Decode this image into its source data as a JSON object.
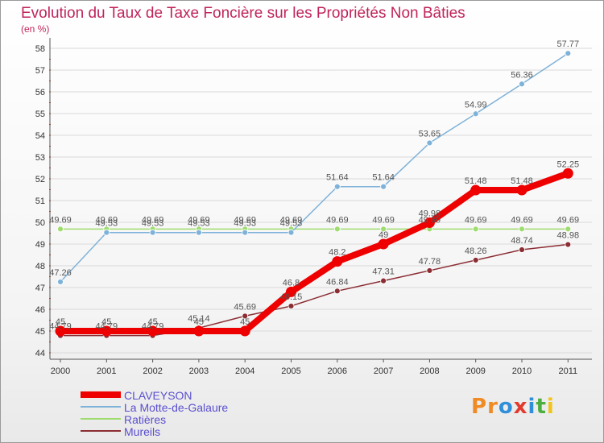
{
  "header": {
    "title": "Evolution du Taux de Taxe Foncière sur les Propriétés Non Bâties",
    "unit": "(en %)"
  },
  "brand": {
    "name": "Proxiti",
    "letters": [
      {
        "ch": "P",
        "color": "#f08a24"
      },
      {
        "ch": "r",
        "color": "#f08a24"
      },
      {
        "ch": "o",
        "color": "#2f8fd8"
      },
      {
        "ch": "x",
        "color": "#e23b2e"
      },
      {
        "ch": "i",
        "color": "#2f8fd8"
      },
      {
        "ch": "t",
        "color": "#4cae3f"
      },
      {
        "ch": "i",
        "color": "#f0c419"
      }
    ]
  },
  "chart_data": {
    "type": "line",
    "title": "Evolution du Taux de Taxe Foncière sur les Propriétés Non Bâties",
    "ylabel": "(en %)",
    "ylim": [
      44,
      58
    ],
    "yticks": [
      44,
      45,
      46,
      47,
      48,
      49,
      50,
      51,
      52,
      53,
      54,
      55,
      56,
      57,
      58
    ],
    "categories": [
      "2000",
      "2001",
      "2002",
      "2003",
      "2004",
      "2005",
      "2006",
      "2007",
      "2008",
      "2009",
      "2010",
      "2011"
    ],
    "grid": "horizontal",
    "legend_position": "bottom-left",
    "series": [
      {
        "name": "CLAVEYSON",
        "color": "#ee0000",
        "values": [
          45,
          45,
          45,
          45,
          45,
          46.8,
          48.2,
          49,
          49.98,
          51.48,
          51.48,
          52.25
        ],
        "labels": [
          "45",
          "45",
          "45",
          "45",
          "45",
          "46.8",
          "48.2",
          "49",
          "49.98",
          "51.48",
          "51.48",
          "52.25"
        ]
      },
      {
        "name": "La Motte-de-Galaure",
        "color": "#7fb2d8",
        "values": [
          47.26,
          49.53,
          49.53,
          49.53,
          49.53,
          49.53,
          51.64,
          51.64,
          53.65,
          54.99,
          56.36,
          57.77
        ],
        "labels": [
          "47.26",
          "49.53",
          "49.53",
          "49.53",
          "49.53",
          "49.53",
          "51.64",
          "51.64",
          "53.65",
          "54.99",
          "56.36",
          "57.77"
        ]
      },
      {
        "name": "Ratières",
        "color": "#9fdc6f",
        "values": [
          49.69,
          49.69,
          49.69,
          49.69,
          49.69,
          49.69,
          49.69,
          49.69,
          49.69,
          49.69,
          49.69,
          49.69
        ],
        "labels": [
          "49.69",
          "49.69",
          "49.69",
          "49.69",
          "49.69",
          "49.69",
          "49.69",
          "49.69",
          "49.69",
          "49.69",
          "49.69",
          "49.69"
        ]
      },
      {
        "name": "Mureils",
        "color": "#8b2d33",
        "values": [
          44.79,
          44.79,
          44.79,
          45.14,
          45.69,
          46.15,
          46.84,
          47.31,
          47.78,
          48.26,
          48.74,
          48.98
        ],
        "labels": [
          "44.79",
          "44.79",
          "44.79",
          "45.14",
          "45.69",
          "46.15",
          "46.84",
          "47.31",
          "47.78",
          "48.26",
          "48.74",
          "48.98"
        ]
      }
    ]
  }
}
